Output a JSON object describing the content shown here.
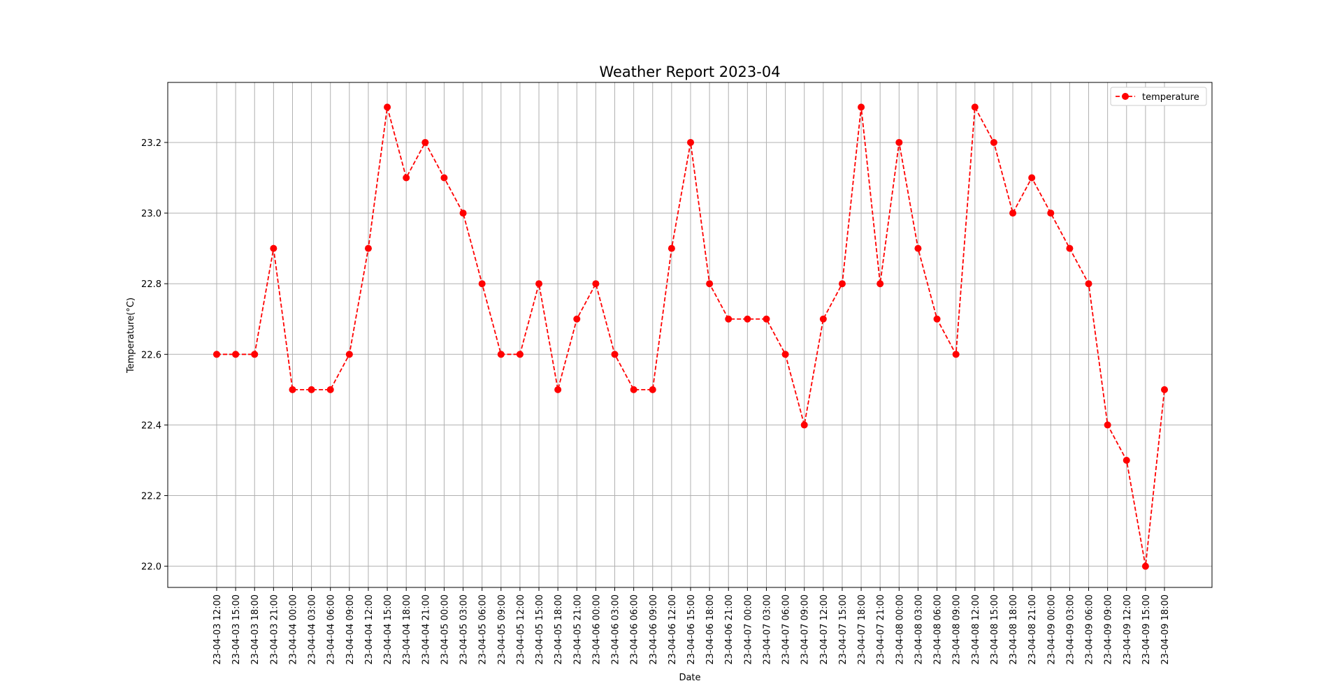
{
  "chart_data": {
    "type": "line",
    "title": "Weather Report 2023-04",
    "xlabel": "Date",
    "ylabel": "Temperature(°C)",
    "ylim": [
      21.94,
      23.37
    ],
    "yticks": [
      "22.0",
      "22.2",
      "22.4",
      "22.6",
      "22.8",
      "23.0",
      "23.2"
    ],
    "grid": true,
    "legend_position": "top-right",
    "categories": [
      "23-04-03 12:00",
      "23-04-03 15:00",
      "23-04-03 18:00",
      "23-04-03 21:00",
      "23-04-04 00:00",
      "23-04-04 03:00",
      "23-04-04 06:00",
      "23-04-04 09:00",
      "23-04-04 12:00",
      "23-04-04 15:00",
      "23-04-04 18:00",
      "23-04-04 21:00",
      "23-04-05 00:00",
      "23-04-05 03:00",
      "23-04-05 06:00",
      "23-04-05 09:00",
      "23-04-05 12:00",
      "23-04-05 15:00",
      "23-04-05 18:00",
      "23-04-05 21:00",
      "23-04-06 00:00",
      "23-04-06 03:00",
      "23-04-06 06:00",
      "23-04-06 09:00",
      "23-04-06 12:00",
      "23-04-06 15:00",
      "23-04-06 18:00",
      "23-04-06 21:00",
      "23-04-07 00:00",
      "23-04-07 03:00",
      "23-04-07 06:00",
      "23-04-07 09:00",
      "23-04-07 12:00",
      "23-04-07 15:00",
      "23-04-07 18:00",
      "23-04-07 21:00",
      "23-04-08 00:00",
      "23-04-08 03:00",
      "23-04-08 06:00",
      "23-04-08 09:00",
      "23-04-08 12:00",
      "23-04-08 15:00",
      "23-04-08 18:00",
      "23-04-08 21:00",
      "23-04-09 00:00",
      "23-04-09 03:00",
      "23-04-09 06:00",
      "23-04-09 09:00",
      "23-04-09 12:00",
      "23-04-09 15:00",
      "23-04-09 18:00"
    ],
    "series": [
      {
        "name": "temperature",
        "color": "#ff0000",
        "line_style": "dashed",
        "marker": "circle",
        "values": [
          22.6,
          22.6,
          22.6,
          22.9,
          22.5,
          22.5,
          22.5,
          22.6,
          22.9,
          23.3,
          23.1,
          23.2,
          23.1,
          23.0,
          22.8,
          22.6,
          22.6,
          22.8,
          22.5,
          22.7,
          22.8,
          22.6,
          22.5,
          22.5,
          22.9,
          23.2,
          22.8,
          22.7,
          22.7,
          22.7,
          22.6,
          22.4,
          22.7,
          22.8,
          23.3,
          22.8,
          23.2,
          22.9,
          22.7,
          22.6,
          23.3,
          23.2,
          23.0,
          23.1,
          23.0,
          22.9,
          22.8,
          22.4,
          22.3,
          22.0,
          22.5
        ]
      }
    ]
  }
}
